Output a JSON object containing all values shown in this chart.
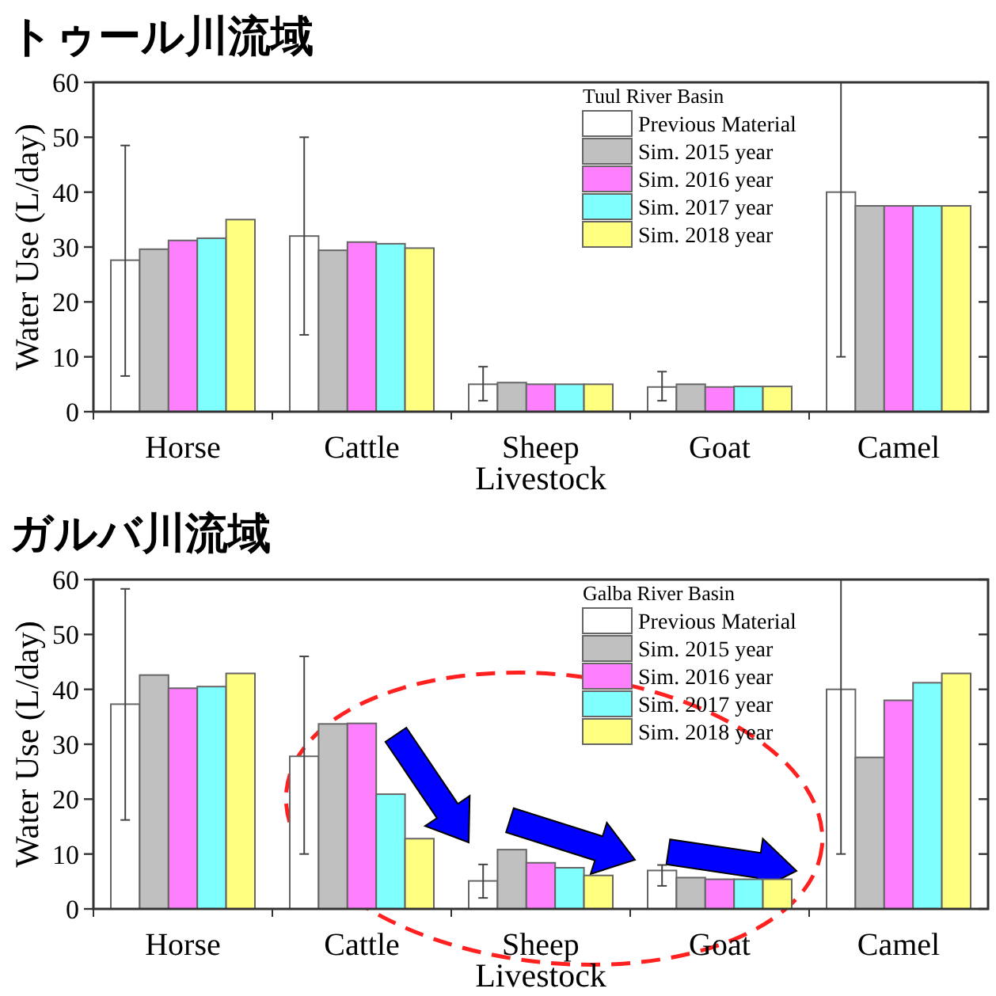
{
  "chart_data": [
    {
      "type": "bar",
      "title": "トゥール川流域",
      "xlabel": "Livestock",
      "ylabel": "Water Use (L/day)",
      "legend_title": "Tuul River Basin",
      "legend": "top right",
      "categories": [
        "Horse",
        "Cattle",
        "Sheep",
        "Goat",
        "Camel"
      ],
      "ylim": [
        0,
        60
      ],
      "yticks": [
        0,
        10,
        20,
        30,
        40,
        50,
        60
      ],
      "series": [
        {
          "name": "Previous Material",
          "color": "#ffffff",
          "values": [
            27.6,
            32,
            5,
            4.5,
            40
          ],
          "errors": [
            [
              6.5,
              48.5
            ],
            [
              14,
              50
            ],
            [
              2,
              8.2
            ],
            [
              2,
              7.3
            ],
            [
              10,
              60
            ]
          ]
        },
        {
          "name": "Sim. 2015 year",
          "color": "#c0c0c0",
          "values": [
            29.6,
            29.4,
            5.3,
            5.0,
            37.5
          ]
        },
        {
          "name": "Sim. 2016 year",
          "color": "#ff80ff",
          "values": [
            31.2,
            30.9,
            5.0,
            4.5,
            37.5
          ]
        },
        {
          "name": "Sim. 2017 year",
          "color": "#80ffff",
          "values": [
            31.6,
            30.6,
            5.0,
            4.6,
            37.5
          ]
        },
        {
          "name": "Sim. 2018 year",
          "color": "#ffff80",
          "values": [
            35.0,
            29.8,
            5.0,
            4.6,
            37.5
          ]
        }
      ]
    },
    {
      "type": "bar",
      "title": "ガルバ川流域",
      "xlabel": "Livestock",
      "ylabel": "Water Use (L/day)",
      "legend_title": "Galba River Basin",
      "legend": "top right",
      "categories": [
        "Horse",
        "Cattle",
        "Sheep",
        "Goat",
        "Camel"
      ],
      "ylim": [
        0,
        60
      ],
      "yticks": [
        0,
        10,
        20,
        30,
        40,
        50,
        60
      ],
      "series": [
        {
          "name": "Previous Material",
          "color": "#ffffff",
          "values": [
            37.3,
            27.8,
            5.1,
            7.0,
            40
          ],
          "errors": [
            [
              16.2,
              58.3
            ],
            [
              10,
              46
            ],
            [
              2,
              8.1
            ],
            [
              4.2,
              8
            ],
            [
              10,
              60
            ]
          ]
        },
        {
          "name": "Sim. 2015 year",
          "color": "#c0c0c0",
          "values": [
            42.6,
            33.7,
            10.8,
            5.7,
            27.6
          ]
        },
        {
          "name": "Sim. 2016 year",
          "color": "#ff80ff",
          "values": [
            40.2,
            33.8,
            8.4,
            5.4,
            38.0
          ]
        },
        {
          "name": "Sim. 2017 year",
          "color": "#80ffff",
          "values": [
            40.5,
            20.9,
            7.5,
            5.4,
            41.2
          ]
        },
        {
          "name": "Sim. 2018 year",
          "color": "#ffff80",
          "values": [
            42.9,
            12.8,
            6.1,
            5.4,
            42.9
          ]
        }
      ]
    }
  ]
}
